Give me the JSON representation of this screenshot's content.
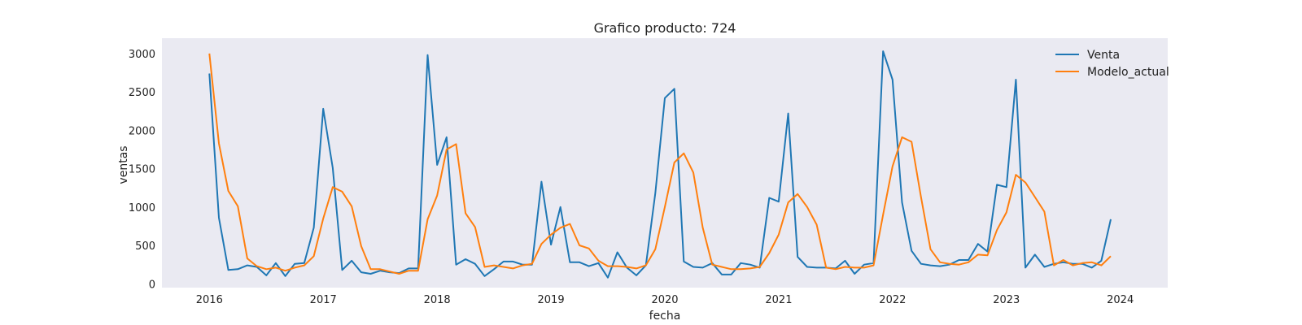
{
  "chart_data": {
    "type": "line",
    "title": "Grafico producto: 724",
    "xlabel": "fecha",
    "ylabel": "ventas",
    "x_ticks": [
      "2016",
      "2017",
      "2018",
      "2019",
      "2020",
      "2021",
      "2022",
      "2023",
      "2024"
    ],
    "y_ticks": [
      "0",
      "500",
      "1000",
      "1500",
      "2000",
      "2500",
      "3000"
    ],
    "xlim": [
      "2015-08",
      "2024-06"
    ],
    "ylim": [
      -50,
      3200
    ],
    "grid": false,
    "legend_position": "top-right",
    "background_color": "#eaeaf2",
    "x": [
      "2016-01",
      "2016-02",
      "2016-03",
      "2016-04",
      "2016-05",
      "2016-06",
      "2016-07",
      "2016-08",
      "2016-09",
      "2016-10",
      "2016-11",
      "2016-12",
      "2017-01",
      "2017-02",
      "2017-03",
      "2017-04",
      "2017-05",
      "2017-06",
      "2017-07",
      "2017-08",
      "2017-09",
      "2017-10",
      "2017-11",
      "2017-12",
      "2018-01",
      "2018-02",
      "2018-03",
      "2018-04",
      "2018-05",
      "2018-06",
      "2018-07",
      "2018-08",
      "2018-09",
      "2018-10",
      "2018-11",
      "2018-12",
      "2019-01",
      "2019-02",
      "2019-03",
      "2019-04",
      "2019-05",
      "2019-06",
      "2019-07",
      "2019-08",
      "2019-09",
      "2019-10",
      "2019-11",
      "2019-12",
      "2020-01",
      "2020-02",
      "2020-03",
      "2020-04",
      "2020-05",
      "2020-06",
      "2020-07",
      "2020-08",
      "2020-09",
      "2020-10",
      "2020-11",
      "2020-12",
      "2021-01",
      "2021-02",
      "2021-03",
      "2021-04",
      "2021-05",
      "2021-06",
      "2021-07",
      "2021-08",
      "2021-09",
      "2021-10",
      "2021-11",
      "2021-12",
      "2022-01",
      "2022-02",
      "2022-03",
      "2022-04",
      "2022-05",
      "2022-06",
      "2022-07",
      "2022-08",
      "2022-09",
      "2022-10",
      "2022-11",
      "2022-12",
      "2023-01",
      "2023-02",
      "2023-03",
      "2023-04",
      "2023-05",
      "2023-06",
      "2023-07",
      "2023-08",
      "2023-09",
      "2023-10",
      "2023-11",
      "2023-12"
    ],
    "series": [
      {
        "name": "Venta",
        "color": "#1f77b4",
        "values": [
          2740,
          860,
          180,
          190,
          240,
          220,
          110,
          270,
          100,
          260,
          270,
          730,
          2280,
          1510,
          180,
          300,
          150,
          130,
          170,
          150,
          140,
          200,
          200,
          2980,
          1550,
          1910,
          250,
          320,
          260,
          100,
          190,
          290,
          290,
          250,
          250,
          1330,
          510,
          1000,
          280,
          280,
          230,
          270,
          80,
          410,
          210,
          110,
          240,
          1180,
          2420,
          2540,
          290,
          220,
          210,
          270,
          120,
          120,
          270,
          250,
          210,
          1120,
          1070,
          2220,
          350,
          220,
          210,
          210,
          200,
          300,
          130,
          250,
          270,
          3030,
          2660,
          1060,
          430,
          260,
          240,
          230,
          250,
          310,
          310,
          520,
          420,
          1290,
          1260,
          2660,
          210,
          380,
          220,
          260,
          280,
          260,
          260,
          210,
          300,
          840
        ]
      },
      {
        "name": "Modelo_actual",
        "color": "#ff7f0e",
        "values": [
          3000,
          1830,
          1210,
          1010,
          330,
          230,
          190,
          210,
          170,
          210,
          240,
          360,
          850,
          1260,
          1200,
          1010,
          490,
          190,
          190,
          160,
          130,
          170,
          170,
          840,
          1150,
          1750,
          1820,
          920,
          740,
          220,
          240,
          220,
          200,
          240,
          260,
          520,
          640,
          730,
          780,
          500,
          460,
          300,
          230,
          230,
          220,
          200,
          240,
          450,
          1000,
          1580,
          1700,
          1450,
          730,
          250,
          220,
          190,
          190,
          200,
          220,
          400,
          640,
          1060,
          1170,
          1000,
          770,
          210,
          190,
          220,
          210,
          210,
          240,
          900,
          1530,
          1910,
          1850,
          1130,
          450,
          280,
          260,
          250,
          280,
          380,
          370,
          700,
          930,
          1420,
          1320,
          1130,
          940,
          240,
          310,
          240,
          270,
          280,
          240,
          360
        ]
      }
    ]
  }
}
